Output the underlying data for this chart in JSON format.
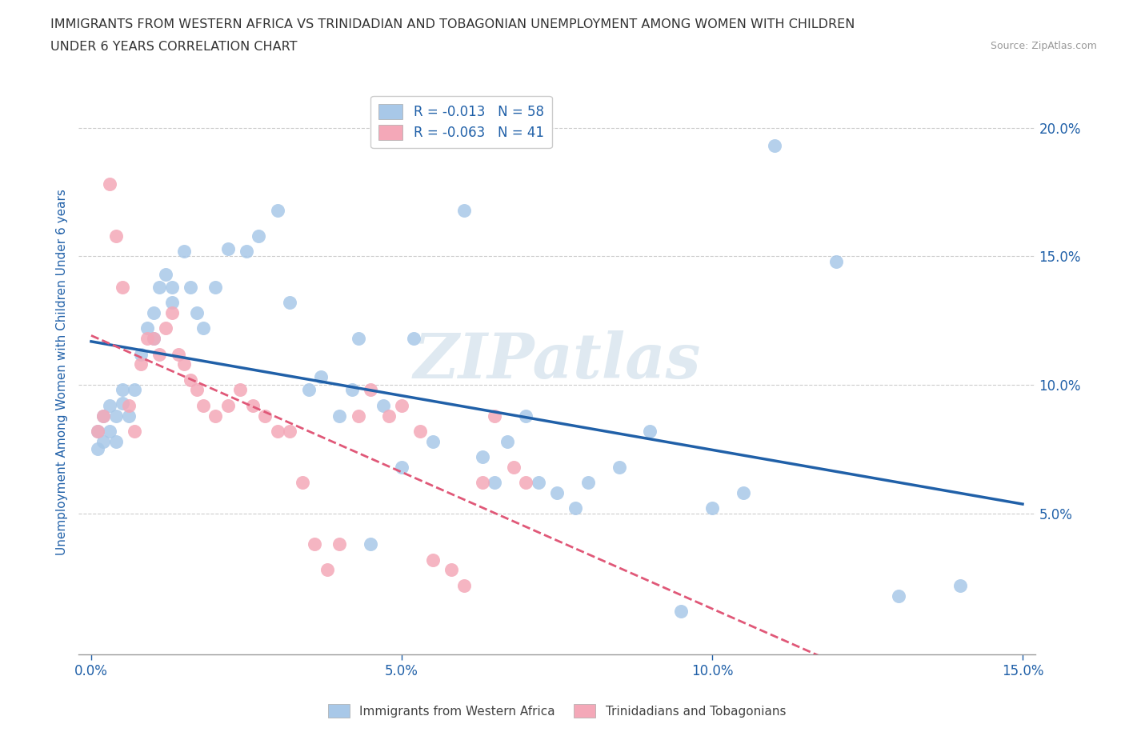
{
  "title_line1": "IMMIGRANTS FROM WESTERN AFRICA VS TRINIDADIAN AND TOBAGONIAN UNEMPLOYMENT AMONG WOMEN WITH CHILDREN",
  "title_line2": "UNDER 6 YEARS CORRELATION CHART",
  "source": "Source: ZipAtlas.com",
  "ylabel": "Unemployment Among Women with Children Under 6 years",
  "blue_label": "Immigrants from Western Africa",
  "pink_label": "Trinidadians and Tobagonians",
  "blue_R": -0.013,
  "blue_N": 58,
  "pink_R": -0.063,
  "pink_N": 41,
  "xlim": [
    -0.002,
    0.152
  ],
  "ylim": [
    -0.005,
    0.215
  ],
  "xticks": [
    0.0,
    0.05,
    0.1,
    0.15
  ],
  "yticks": [
    0.05,
    0.1,
    0.15,
    0.2
  ],
  "blue_scatter": [
    [
      0.001,
      0.082
    ],
    [
      0.001,
      0.075
    ],
    [
      0.002,
      0.088
    ],
    [
      0.002,
      0.078
    ],
    [
      0.003,
      0.092
    ],
    [
      0.003,
      0.082
    ],
    [
      0.004,
      0.088
    ],
    [
      0.004,
      0.078
    ],
    [
      0.005,
      0.098
    ],
    [
      0.005,
      0.093
    ],
    [
      0.006,
      0.088
    ],
    [
      0.007,
      0.098
    ],
    [
      0.008,
      0.112
    ],
    [
      0.009,
      0.122
    ],
    [
      0.01,
      0.128
    ],
    [
      0.01,
      0.118
    ],
    [
      0.011,
      0.138
    ],
    [
      0.012,
      0.143
    ],
    [
      0.013,
      0.138
    ],
    [
      0.013,
      0.132
    ],
    [
      0.015,
      0.152
    ],
    [
      0.016,
      0.138
    ],
    [
      0.017,
      0.128
    ],
    [
      0.018,
      0.122
    ],
    [
      0.02,
      0.138
    ],
    [
      0.022,
      0.153
    ],
    [
      0.025,
      0.152
    ],
    [
      0.027,
      0.158
    ],
    [
      0.03,
      0.168
    ],
    [
      0.032,
      0.132
    ],
    [
      0.035,
      0.098
    ],
    [
      0.037,
      0.103
    ],
    [
      0.04,
      0.088
    ],
    [
      0.042,
      0.098
    ],
    [
      0.043,
      0.118
    ],
    [
      0.045,
      0.038
    ],
    [
      0.047,
      0.092
    ],
    [
      0.05,
      0.068
    ],
    [
      0.052,
      0.118
    ],
    [
      0.055,
      0.078
    ],
    [
      0.06,
      0.168
    ],
    [
      0.063,
      0.072
    ],
    [
      0.065,
      0.062
    ],
    [
      0.067,
      0.078
    ],
    [
      0.07,
      0.088
    ],
    [
      0.072,
      0.062
    ],
    [
      0.075,
      0.058
    ],
    [
      0.078,
      0.052
    ],
    [
      0.08,
      0.062
    ],
    [
      0.085,
      0.068
    ],
    [
      0.09,
      0.082
    ],
    [
      0.095,
      0.012
    ],
    [
      0.1,
      0.052
    ],
    [
      0.105,
      0.058
    ],
    [
      0.11,
      0.193
    ],
    [
      0.12,
      0.148
    ],
    [
      0.13,
      0.018
    ],
    [
      0.14,
      0.022
    ]
  ],
  "pink_scatter": [
    [
      0.001,
      0.082
    ],
    [
      0.002,
      0.088
    ],
    [
      0.003,
      0.178
    ],
    [
      0.004,
      0.158
    ],
    [
      0.005,
      0.138
    ],
    [
      0.006,
      0.092
    ],
    [
      0.007,
      0.082
    ],
    [
      0.008,
      0.108
    ],
    [
      0.009,
      0.118
    ],
    [
      0.01,
      0.118
    ],
    [
      0.011,
      0.112
    ],
    [
      0.012,
      0.122
    ],
    [
      0.013,
      0.128
    ],
    [
      0.014,
      0.112
    ],
    [
      0.015,
      0.108
    ],
    [
      0.016,
      0.102
    ],
    [
      0.017,
      0.098
    ],
    [
      0.018,
      0.092
    ],
    [
      0.02,
      0.088
    ],
    [
      0.022,
      0.092
    ],
    [
      0.024,
      0.098
    ],
    [
      0.026,
      0.092
    ],
    [
      0.028,
      0.088
    ],
    [
      0.03,
      0.082
    ],
    [
      0.032,
      0.082
    ],
    [
      0.034,
      0.062
    ],
    [
      0.036,
      0.038
    ],
    [
      0.038,
      0.028
    ],
    [
      0.04,
      0.038
    ],
    [
      0.043,
      0.088
    ],
    [
      0.045,
      0.098
    ],
    [
      0.048,
      0.088
    ],
    [
      0.05,
      0.092
    ],
    [
      0.053,
      0.082
    ],
    [
      0.055,
      0.032
    ],
    [
      0.058,
      0.028
    ],
    [
      0.06,
      0.022
    ],
    [
      0.063,
      0.062
    ],
    [
      0.065,
      0.088
    ],
    [
      0.068,
      0.068
    ],
    [
      0.07,
      0.062
    ]
  ],
  "blue_color": "#a8c8e8",
  "pink_color": "#f4a8b8",
  "blue_line_color": "#2060a8",
  "pink_line_color": "#e05878",
  "watermark": "ZIPatlas",
  "background_color": "#ffffff",
  "grid_color": "#cccccc"
}
